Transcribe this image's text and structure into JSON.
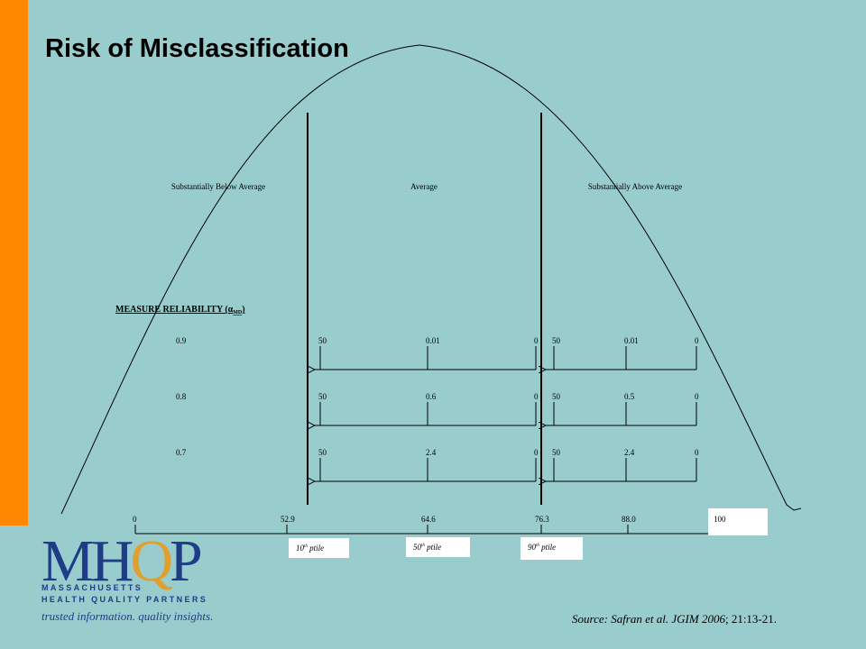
{
  "slide": {
    "title": "Risk of Misclassification",
    "accent_color": "#ff8800",
    "background_color": "#99cccc"
  },
  "regions": {
    "below": "Substantially Below Average",
    "average": "Average",
    "above": "Substantially Above Average"
  },
  "reliability_header": "MEASURE RELIABILITY (α",
  "reliability_subscript": "MD",
  "reliability_close": ")",
  "rows": [
    {
      "reliability": "0.9",
      "left": [
        "50",
        "0.01",
        "0"
      ],
      "right": [
        "50",
        "0.01",
        "0"
      ]
    },
    {
      "reliability": "0.8",
      "left": [
        "50",
        "0.6",
        "0"
      ],
      "right": [
        "50",
        "0.5",
        "0"
      ]
    },
    {
      "reliability": "0.7",
      "left": [
        "50",
        "2.4",
        "0"
      ],
      "right": [
        "50",
        "2.4",
        "0"
      ]
    }
  ],
  "scale": {
    "ticks": [
      "0",
      "52.9",
      "64.6",
      "76.3",
      "88.0",
      "100"
    ]
  },
  "percentiles": [
    {
      "num": "10",
      "sup": "th",
      "label": " ptile"
    },
    {
      "num": "50",
      "sup": "th",
      "label": " ptile"
    },
    {
      "num": "90",
      "sup": "th",
      "label": " ptile"
    }
  ],
  "logo": {
    "letters_m": "M",
    "letters_h": "H",
    "letters_q": "Q",
    "letters_p": "P",
    "line1": "MASSACHUSETTS",
    "line2": "HEALTH QUALITY PARTNERS",
    "tagline": "trusted information. quality insights."
  },
  "source": {
    "prefix": "Source:  Safran et al.  ",
    "journal": "JGIM 2006",
    "suffix": "; 21:13-21."
  }
}
